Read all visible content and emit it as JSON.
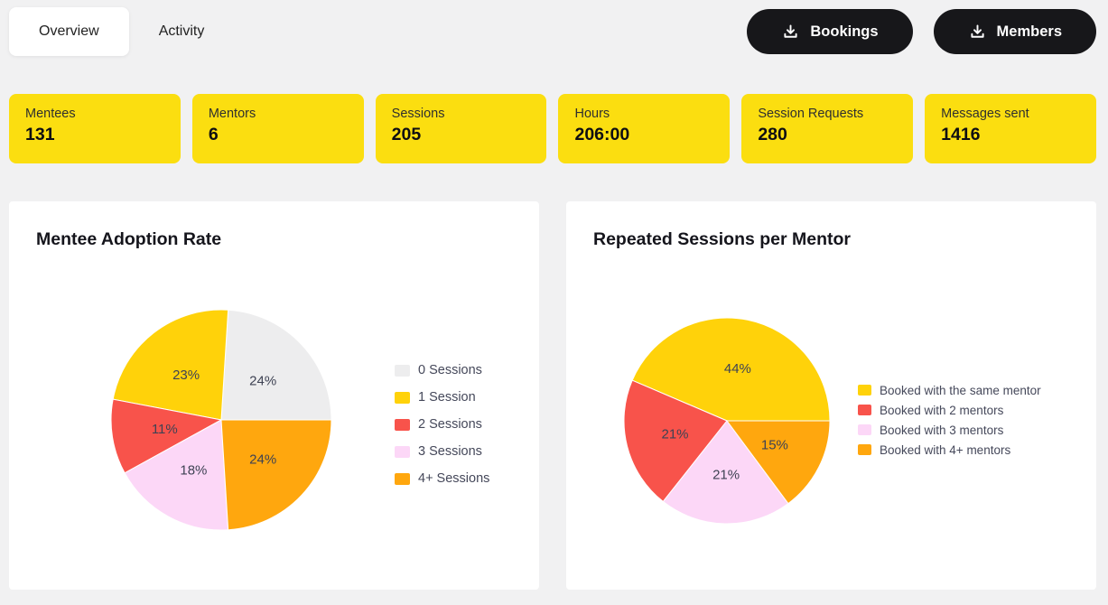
{
  "colors": {
    "page_background": "#f1f1f2",
    "stat_card_yellow": "#fbde10",
    "button_black": "#17171a",
    "button_text": "#ffffff",
    "card_white": "#ffffff",
    "title_text": "#15151c",
    "legend_text": "#45485a",
    "slice_label_text": "#3e4253",
    "tab_text": "#222222",
    "stat_label_text": "#2f2f2f",
    "stat_value_text": "#0e0e12"
  },
  "tabs": [
    {
      "label": "Overview",
      "active": true
    },
    {
      "label": "Activity",
      "active": false
    }
  ],
  "actions": [
    {
      "label": "Bookings",
      "icon": "download-icon"
    },
    {
      "label": "Members",
      "icon": "download-icon"
    }
  ],
  "stats": [
    {
      "label": "Mentees",
      "value": "131"
    },
    {
      "label": "Mentors",
      "value": "6"
    },
    {
      "label": "Sessions",
      "value": "205"
    },
    {
      "label": "Hours",
      "value": "206:00"
    },
    {
      "label": "Session Requests",
      "value": "280"
    },
    {
      "label": "Messages sent",
      "value": "1416"
    }
  ],
  "chart_data": [
    {
      "type": "pie",
      "title": "Mentee Adoption Rate",
      "labels": [
        "0 Sessions",
        "1 Session",
        "2 Sessions",
        "3 Sessions",
        "4+ Sessions"
      ],
      "values": [
        24,
        23,
        11,
        18,
        24
      ],
      "unit": "%",
      "colors": [
        "#ededee",
        "#ffd20a",
        "#f8534b",
        "#fcd7f7",
        "#ffa70e"
      ],
      "start_angle_deg": 0,
      "direction": "counterclockwise",
      "legend_position": "right",
      "slice_label_radius": 0.52
    },
    {
      "type": "pie",
      "title": "Repeated Sessions per Mentor",
      "labels": [
        "Booked with the same mentor",
        "Booked with 2 mentors",
        "Booked with 3 mentors",
        "Booked with 4+ mentors"
      ],
      "values": [
        44,
        21,
        21,
        15
      ],
      "unit": "%",
      "colors": [
        "#ffd20a",
        "#f8534b",
        "#fcd7f7",
        "#ffa70e"
      ],
      "start_angle_deg": 0,
      "direction": "counterclockwise",
      "legend_position": "right",
      "slice_label_radius": 0.52
    }
  ]
}
